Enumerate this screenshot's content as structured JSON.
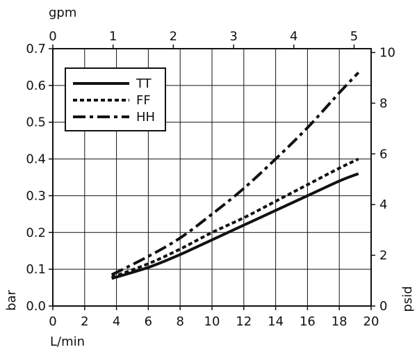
{
  "chart_data": {
    "type": "line",
    "title": "",
    "xlabel": "L/min",
    "x2label": "gpm",
    "ylabel": "bar",
    "y2label": "psid",
    "xlim": [
      0,
      20
    ],
    "ylim": [
      0,
      0.7
    ],
    "x2lim": [
      0,
      5.283
    ],
    "y2lim": [
      0,
      10.15
    ],
    "x_ticks": [
      "0",
      "2",
      "4",
      "6",
      "8",
      "10",
      "12",
      "14",
      "16",
      "18",
      "20"
    ],
    "y_ticks": [
      "0.0",
      "0.1",
      "0.2",
      "0.3",
      "0.4",
      "0.5",
      "0.6",
      "0.7"
    ],
    "x2_ticks": [
      "0",
      "1",
      "2",
      "3",
      "4",
      "5"
    ],
    "y2_ticks": [
      "0",
      "2",
      "4",
      "6",
      "8",
      "10"
    ],
    "grid": true,
    "legend_position": "top-left",
    "series": [
      {
        "name": "TT",
        "style": "solid",
        "x": [
          3.7,
          6,
          8,
          10,
          12,
          14,
          16,
          18,
          19.2
        ],
        "y": [
          0.075,
          0.105,
          0.14,
          0.18,
          0.22,
          0.26,
          0.3,
          0.34,
          0.36
        ]
      },
      {
        "name": "FF",
        "style": "dotted",
        "x": [
          3.7,
          6,
          8,
          10,
          12,
          14,
          16,
          18,
          19.2
        ],
        "y": [
          0.078,
          0.115,
          0.155,
          0.2,
          0.24,
          0.285,
          0.33,
          0.375,
          0.4
        ]
      },
      {
        "name": "HH",
        "style": "dashdot",
        "x": [
          3.7,
          6,
          8,
          10,
          12,
          14,
          16,
          18,
          19.2
        ],
        "y": [
          0.085,
          0.135,
          0.185,
          0.25,
          0.32,
          0.4,
          0.485,
          0.58,
          0.635
        ]
      }
    ]
  }
}
